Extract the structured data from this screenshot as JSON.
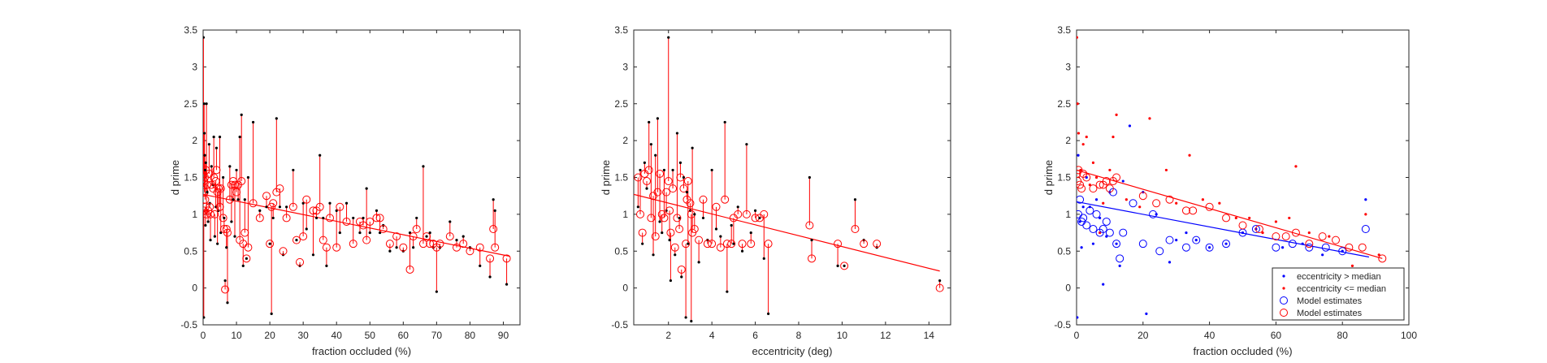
{
  "colors": {
    "accent": "#ff0000",
    "second": "#0000ff",
    "points": "#000000",
    "axes": "#262626"
  },
  "chart_data": [
    {
      "type": "scatter",
      "xlabel": "fraction occluded (%)",
      "ylabel": "d prime",
      "xlim": [
        0,
        95
      ],
      "ylim": [
        -0.5,
        3.5
      ],
      "xticks": [
        0,
        10,
        20,
        30,
        40,
        50,
        60,
        70,
        80,
        90
      ],
      "yticks": [
        -0.5,
        0,
        0.5,
        1,
        1.5,
        2,
        2.5,
        3,
        3.5
      ],
      "grid": false,
      "fit_line": {
        "x": [
          0,
          92
        ],
        "y": [
          1.27,
          0.43
        ]
      },
      "pairs": [
        [
          0.1,
          3.4,
          1.55
        ],
        [
          0.2,
          -0.4,
          1.05
        ],
        [
          0.3,
          2.5,
          1.45
        ],
        [
          0.4,
          2.1,
          1.3
        ],
        [
          0.5,
          1.8,
          1.5
        ],
        [
          0.6,
          1.6,
          1.2
        ],
        [
          0.7,
          0.85,
          1.1
        ],
        [
          0.8,
          1.7,
          1.6
        ],
        [
          1.0,
          2.5,
          1.0
        ],
        [
          1.2,
          1.3,
          1.4
        ],
        [
          1.5,
          0.9,
          1.05
        ],
        [
          1.8,
          1.95,
          1.55
        ],
        [
          2,
          1.15,
          1.1
        ],
        [
          2.2,
          0.65,
          1.0
        ],
        [
          2.5,
          1.65,
          1.4
        ],
        [
          3,
          1.4,
          1.35
        ],
        [
          3.2,
          2.05,
          1.5
        ],
        [
          3.5,
          0.7,
          1.0
        ],
        [
          3.8,
          1.1,
          1.45
        ],
        [
          4,
          1.9,
          1.6
        ],
        [
          4.3,
          0.6,
          1.3
        ],
        [
          4.6,
          1.05,
          1.35
        ],
        [
          5,
          2.05,
          1.1
        ],
        [
          5.3,
          0.75,
          1.35
        ],
        [
          6,
          1.5,
          0.95
        ],
        [
          6.3,
          0.95,
          0.8
        ],
        [
          6.6,
          0.1,
          -0.02
        ],
        [
          7,
          0.55,
          0.8
        ],
        [
          7.3,
          -0.2,
          0.75
        ],
        [
          8,
          1.65,
          1.2
        ],
        [
          8.5,
          0.9,
          1.4
        ],
        [
          9,
          1.2,
          1.45
        ],
        [
          9.5,
          0.7,
          1.4
        ],
        [
          10,
          1.6,
          1.3
        ],
        [
          10.5,
          1.2,
          1.4
        ],
        [
          11,
          2.05,
          0.65
        ],
        [
          11.5,
          2.35,
          1.45
        ],
        [
          12,
          0.3,
          0.6
        ],
        [
          12.5,
          1.2,
          0.75
        ],
        [
          13,
          0.4,
          0.4
        ],
        [
          13.5,
          1.5,
          0.55
        ],
        [
          15,
          2.25,
          1.15
        ],
        [
          17,
          1.05,
          0.95
        ],
        [
          19,
          1.1,
          1.25
        ],
        [
          20,
          0.6,
          0.6
        ],
        [
          20.5,
          -0.35,
          1.1
        ],
        [
          21,
          0.95,
          1.15
        ],
        [
          22,
          2.3,
          1.3
        ],
        [
          23,
          1.1,
          1.35
        ],
        [
          24,
          0.45,
          0.5
        ],
        [
          25,
          1.1,
          0.95
        ],
        [
          27,
          1.6,
          1.1
        ],
        [
          28,
          0.65,
          0.65
        ],
        [
          29,
          0.3,
          0.35
        ],
        [
          30,
          1.15,
          0.7
        ],
        [
          31,
          0.8,
          1.2
        ],
        [
          33,
          0.45,
          1.05
        ],
        [
          34,
          0.95,
          1.05
        ],
        [
          35,
          1.8,
          1.1
        ],
        [
          36,
          0.95,
          0.65
        ],
        [
          37,
          0.3,
          0.55
        ],
        [
          38,
          1.15,
          0.95
        ],
        [
          40,
          1.05,
          0.55
        ],
        [
          41,
          0.75,
          1.1
        ],
        [
          43,
          1.15,
          0.9
        ],
        [
          45,
          0.95,
          0.6
        ],
        [
          47,
          0.75,
          0.9
        ],
        [
          48,
          0.95,
          0.85
        ],
        [
          49,
          1.35,
          0.65
        ],
        [
          50,
          0.75,
          0.9
        ],
        [
          52,
          1.05,
          0.95
        ],
        [
          53,
          0.75,
          0.95
        ],
        [
          54,
          0.85,
          0.8
        ],
        [
          56,
          0.5,
          0.6
        ],
        [
          58,
          0.55,
          0.7
        ],
        [
          60,
          0.5,
          0.55
        ],
        [
          62,
          0.75,
          0.25
        ],
        [
          63,
          0.55,
          0.7
        ],
        [
          64,
          0.95,
          0.8
        ],
        [
          66,
          1.65,
          0.6
        ],
        [
          67,
          0.7,
          0.7
        ],
        [
          68,
          0.75,
          0.6
        ],
        [
          69,
          0.55,
          0.6
        ],
        [
          70,
          -0.05,
          0.55
        ],
        [
          71,
          0.55,
          0.6
        ],
        [
          74,
          0.9,
          0.7
        ],
        [
          76,
          0.65,
          0.55
        ],
        [
          78,
          0.7,
          0.6
        ],
        [
          80,
          0.55,
          0.5
        ],
        [
          83,
          0.3,
          0.55
        ],
        [
          86,
          0.15,
          0.4
        ],
        [
          87,
          1.2,
          0.8
        ],
        [
          87.5,
          1.05,
          0.55
        ],
        [
          91,
          0.05,
          0.4
        ]
      ]
    },
    {
      "type": "scatter",
      "xlabel": "eccentricity (deg)",
      "ylabel": "d prime",
      "xlim": [
        0.4,
        15
      ],
      "ylim": [
        -0.5,
        3.5
      ],
      "xticks": [
        2,
        4,
        6,
        8,
        10,
        12,
        14
      ],
      "yticks": [
        -0.5,
        0,
        0.5,
        1,
        1.5,
        2,
        2.5,
        3,
        3.5
      ],
      "grid": false,
      "fit_line": {
        "x": [
          0.4,
          14.5
        ],
        "y": [
          1.27,
          0.23
        ]
      },
      "pairs": [
        [
          0.6,
          1.1,
          1.5
        ],
        [
          0.7,
          1.6,
          1.0
        ],
        [
          0.8,
          0.6,
          0.75
        ],
        [
          0.9,
          1.7,
          1.55
        ],
        [
          1.0,
          1.35,
          1.45
        ],
        [
          1.1,
          2.25,
          1.6
        ],
        [
          1.2,
          1.95,
          0.95
        ],
        [
          1.3,
          0.45,
          1.25
        ],
        [
          1.4,
          1.8,
          0.7
        ],
        [
          1.5,
          2.3,
          1.3
        ],
        [
          1.6,
          0.9,
          1.55
        ],
        [
          1.7,
          0.75,
          1.0
        ],
        [
          1.8,
          1.6,
          0.95
        ],
        [
          1.9,
          1.05,
          1.3
        ],
        [
          2.0,
          3.4,
          1.45
        ],
        [
          2.05,
          0.65,
          1.05
        ],
        [
          2.1,
          0.1,
          0.75
        ],
        [
          2.2,
          1.6,
          1.35
        ],
        [
          2.3,
          0.45,
          0.55
        ],
        [
          2.4,
          2.1,
          0.95
        ],
        [
          2.5,
          0.95,
          0.8
        ],
        [
          2.55,
          1.7,
          1.5
        ],
        [
          2.6,
          0.15,
          0.25
        ],
        [
          2.7,
          1.5,
          1.35
        ],
        [
          2.8,
          -0.4,
          0.6
        ],
        [
          2.85,
          1.3,
          1.2
        ],
        [
          2.9,
          0.6,
          1.45
        ],
        [
          3.0,
          1.05,
          1.15
        ],
        [
          3.05,
          -0.45,
          1.0
        ],
        [
          3.1,
          1.9,
          0.75
        ],
        [
          3.2,
          1.0,
          0.8
        ],
        [
          3.4,
          0.35,
          0.65
        ],
        [
          3.6,
          0.95,
          1.2
        ],
        [
          3.8,
          0.65,
          0.6
        ],
        [
          4.0,
          1.6,
          0.6
        ],
        [
          4.2,
          0.8,
          1.1
        ],
        [
          4.4,
          0.7,
          0.55
        ],
        [
          4.6,
          2.25,
          1.2
        ],
        [
          4.7,
          -0.05,
          0.6
        ],
        [
          4.9,
          0.85,
          0.6
        ],
        [
          5.0,
          0.6,
          0.95
        ],
        [
          5.2,
          1.1,
          1.0
        ],
        [
          5.4,
          0.5,
          0.6
        ],
        [
          5.6,
          1.95,
          1.0
        ],
        [
          5.8,
          0.75,
          0.6
        ],
        [
          6.0,
          1.05,
          0.95
        ],
        [
          6.2,
          0.95,
          0.95
        ],
        [
          6.6,
          -0.35,
          0.6
        ],
        [
          6.4,
          0.4,
          1.0
        ],
        [
          8.5,
          1.5,
          0.85
        ],
        [
          8.6,
          0.65,
          0.4
        ],
        [
          9.8,
          0.3,
          0.6
        ],
        [
          10.1,
          0.3,
          0.3
        ],
        [
          10.6,
          1.2,
          0.8
        ],
        [
          11.0,
          0.65,
          0.6
        ],
        [
          11.6,
          0.55,
          0.6
        ],
        [
          14.5,
          0.1,
          0.0
        ]
      ]
    },
    {
      "type": "scatter",
      "xlabel": "fraction occluded (%)",
      "ylabel": "d prime",
      "xlim": [
        0,
        100
      ],
      "ylim": [
        -0.5,
        3.5
      ],
      "xticks": [
        0,
        20,
        40,
        60,
        80,
        100
      ],
      "yticks": [
        -0.5,
        0,
        0.5,
        1,
        1.5,
        2,
        2.5,
        3,
        3.5
      ],
      "grid": false,
      "legend_position": "bottom-right",
      "legend": [
        {
          "label": "eccentricity > median",
          "marker": "dot",
          "color": "#0000ff"
        },
        {
          "label": "eccentricity <= median",
          "marker": "dot",
          "color": "#ff0000"
        },
        {
          "label": "Model estimates",
          "marker": "circle",
          "color": "#0000ff"
        },
        {
          "label": "Model estimates",
          "marker": "circle",
          "color": "#ff0000"
        }
      ],
      "fit_high": {
        "x": [
          0,
          88
        ],
        "y": [
          1.17,
          0.42
        ]
      },
      "fit_low": {
        "x": [
          0,
          92
        ],
        "y": [
          1.6,
          0.4
        ]
      },
      "obs_high": [
        [
          0.2,
          -0.4
        ],
        [
          0.5,
          1.8
        ],
        [
          1,
          0.9
        ],
        [
          1.5,
          0.55
        ],
        [
          2,
          1.1
        ],
        [
          3,
          1.5
        ],
        [
          4,
          1.1
        ],
        [
          5,
          0.6
        ],
        [
          6,
          1.2
        ],
        [
          7,
          0.95
        ],
        [
          8,
          0.05
        ],
        [
          9,
          0.7
        ],
        [
          10,
          1.3
        ],
        [
          12,
          0.6
        ],
        [
          13,
          0.3
        ],
        [
          14,
          1.45
        ],
        [
          16,
          2.2
        ],
        [
          20,
          1.3
        ],
        [
          21,
          -0.35
        ],
        [
          24,
          1.0
        ],
        [
          28,
          0.35
        ],
        [
          30,
          0.65
        ],
        [
          33,
          0.75
        ],
        [
          36,
          0.65
        ],
        [
          40,
          0.55
        ],
        [
          45,
          0.6
        ],
        [
          50,
          0.75
        ],
        [
          54,
          0.8
        ],
        [
          62,
          0.55
        ],
        [
          68,
          0.6
        ],
        [
          74,
          0.45
        ],
        [
          80,
          0.5
        ],
        [
          87,
          1.2
        ]
      ],
      "obs_low": [
        [
          0.1,
          3.4
        ],
        [
          0.3,
          2.5
        ],
        [
          0.6,
          2.1
        ],
        [
          1.2,
          1.6
        ],
        [
          2,
          1.95
        ],
        [
          3,
          2.05
        ],
        [
          4,
          1.4
        ],
        [
          5,
          1.7
        ],
        [
          6,
          1.5
        ],
        [
          7,
          0.75
        ],
        [
          8,
          1.15
        ],
        [
          10,
          1.6
        ],
        [
          11,
          2.05
        ],
        [
          12,
          2.35
        ],
        [
          15,
          1.2
        ],
        [
          19,
          1.1
        ],
        [
          22,
          2.3
        ],
        [
          27,
          1.6
        ],
        [
          30,
          1.15
        ],
        [
          34,
          1.8
        ],
        [
          38,
          1.2
        ],
        [
          43,
          1.15
        ],
        [
          48,
          0.95
        ],
        [
          52,
          0.95
        ],
        [
          56,
          0.75
        ],
        [
          60,
          0.9
        ],
        [
          64,
          0.95
        ],
        [
          66,
          1.65
        ],
        [
          70,
          0.75
        ],
        [
          76,
          0.7
        ],
        [
          83,
          0.3
        ],
        [
          87,
          1.0
        ],
        [
          91,
          0.45
        ]
      ],
      "est_high": [
        [
          0.5,
          1.0
        ],
        [
          1,
          1.2
        ],
        [
          1.5,
          0.9
        ],
        [
          2,
          0.95
        ],
        [
          3,
          0.85
        ],
        [
          4,
          1.05
        ],
        [
          5,
          0.8
        ],
        [
          6,
          1.0
        ],
        [
          7,
          0.75
        ],
        [
          8,
          0.8
        ],
        [
          9,
          0.9
        ],
        [
          10,
          0.75
        ],
        [
          11,
          1.3
        ],
        [
          12,
          0.6
        ],
        [
          13,
          0.4
        ],
        [
          14,
          0.75
        ],
        [
          17,
          1.15
        ],
        [
          20,
          0.6
        ],
        [
          23,
          1.0
        ],
        [
          25,
          0.5
        ],
        [
          28,
          0.65
        ],
        [
          33,
          0.55
        ],
        [
          36,
          0.65
        ],
        [
          40,
          0.55
        ],
        [
          45,
          0.6
        ],
        [
          50,
          0.75
        ],
        [
          54,
          0.8
        ],
        [
          60,
          0.55
        ],
        [
          65,
          0.6
        ],
        [
          70,
          0.55
        ],
        [
          75,
          0.55
        ],
        [
          80,
          0.5
        ],
        [
          87,
          0.8
        ]
      ],
      "est_low": [
        [
          0.1,
          1.55
        ],
        [
          0.3,
          1.45
        ],
        [
          0.6,
          1.6
        ],
        [
          1,
          1.4
        ],
        [
          1.5,
          1.35
        ],
        [
          2,
          1.55
        ],
        [
          3,
          1.5
        ],
        [
          5,
          1.35
        ],
        [
          7,
          1.4
        ],
        [
          8,
          1.4
        ],
        [
          9,
          1.45
        ],
        [
          10,
          1.35
        ],
        [
          11,
          1.45
        ],
        [
          12,
          1.5
        ],
        [
          20,
          1.25
        ],
        [
          24,
          1.15
        ],
        [
          28,
          1.2
        ],
        [
          33,
          1.05
        ],
        [
          35,
          1.05
        ],
        [
          40,
          1.1
        ],
        [
          45,
          0.95
        ],
        [
          50,
          0.85
        ],
        [
          55,
          0.8
        ],
        [
          60,
          0.7
        ],
        [
          63,
          0.7
        ],
        [
          66,
          0.75
        ],
        [
          70,
          0.6
        ],
        [
          74,
          0.7
        ],
        [
          78,
          0.65
        ],
        [
          82,
          0.55
        ],
        [
          86,
          0.55
        ],
        [
          92,
          0.4
        ]
      ]
    }
  ]
}
